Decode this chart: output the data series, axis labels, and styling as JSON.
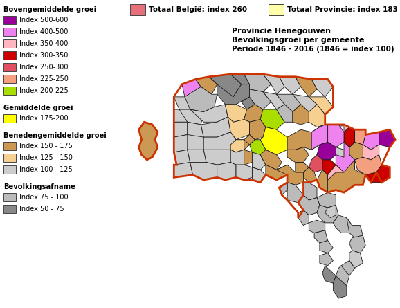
{
  "title_line1": "Provincie Henegouwen",
  "title_line2": "Bevolkingsgroei per gemeente",
  "title_line3": "Periode 1846 - 2016 (1846 = index 100)",
  "header": "Bovengemiddelde groei",
  "header2": "Gemiddelde groei",
  "header3": "Benedengemiddelde groei",
  "header4": "Bevolkingsafname",
  "top_legend": [
    {
      "label": "Totaal België: index 260",
      "color": "#E8707A"
    },
    {
      "label": "Totaal Provincie: index 183",
      "color": "#FFFFAA"
    }
  ],
  "bg_color": "#FFFFFF",
  "colors": {
    "index_500_600": "#990099",
    "index_400_500": "#EE82EE",
    "index_350_400": "#FFB6C1",
    "index_300_350": "#CC0000",
    "index_250_300": "#E05060",
    "index_225_250": "#F4A080",
    "index_200_225": "#AADD00",
    "index_175_200": "#FFFF00",
    "index_150_175": "#CC9955",
    "index_125_150": "#F5D090",
    "index_100_125": "#CCCCCC",
    "index_75_100": "#BBBBBB",
    "index_50_75": "#888888"
  }
}
